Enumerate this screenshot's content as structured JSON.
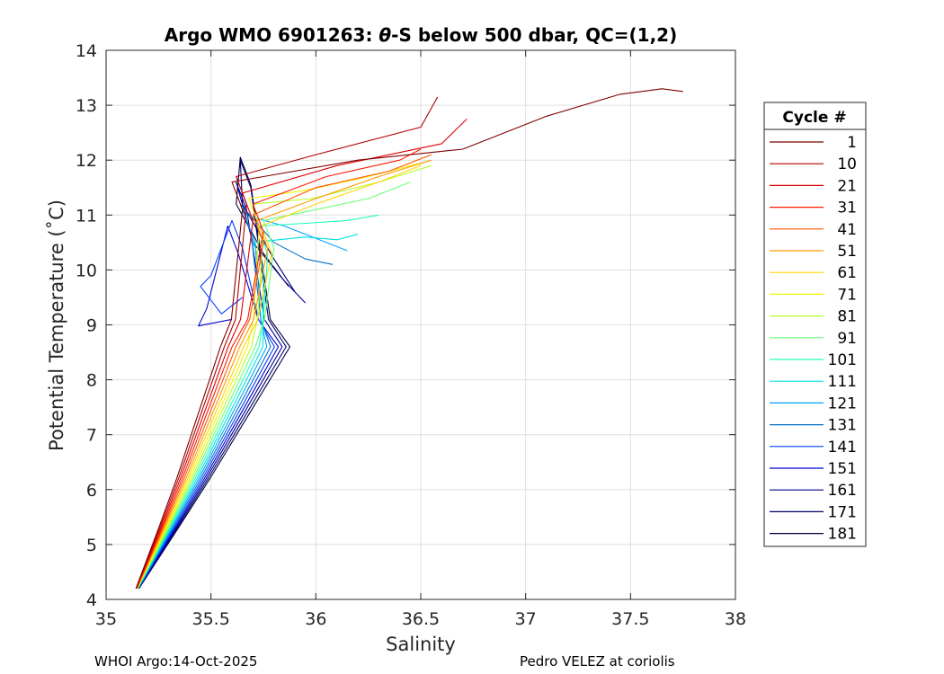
{
  "chart_data": {
    "type": "line",
    "title": "Argo WMO 6901263: θ-S below 500 dbar,  QC=(1,2)",
    "title_prefix": "Argo WMO 6901263: ",
    "title_theta": "θ",
    "title_suffix": "-S below 500 dbar,  QC=(1,2)",
    "xlabel": "Salinity",
    "ylabel": "Potential Temperature (˚C)",
    "xlim": [
      35,
      38
    ],
    "ylim": [
      4,
      14
    ],
    "xticks": [
      "35",
      "35.5",
      "36",
      "36.5",
      "37",
      "37.5",
      "38"
    ],
    "yticks": [
      "4",
      "5",
      "6",
      "7",
      "8",
      "9",
      "10",
      "11",
      "12",
      "13",
      "14"
    ],
    "grid": true,
    "legend": {
      "title": "Cycle #",
      "placement": "right",
      "entries": [
        {
          "label": "1",
          "color": "#800000"
        },
        {
          "label": "10",
          "color": "#b00000"
        },
        {
          "label": "21",
          "color": "#df0000"
        },
        {
          "label": "31",
          "color": "#ff1a00"
        },
        {
          "label": "41",
          "color": "#ff5500"
        },
        {
          "label": "51",
          "color": "#ff9a00"
        },
        {
          "label": "61",
          "color": "#ffd500"
        },
        {
          "label": "71",
          "color": "#f5f500"
        },
        {
          "label": "81",
          "color": "#b6ff26"
        },
        {
          "label": "91",
          "color": "#6aff7a"
        },
        {
          "label": "101",
          "color": "#20ffc0"
        },
        {
          "label": "111",
          "color": "#00e0e0"
        },
        {
          "label": "121",
          "color": "#00a4ff"
        },
        {
          "label": "131",
          "color": "#0070c8"
        },
        {
          "label": "141",
          "color": "#0040ff"
        },
        {
          "label": "151",
          "color": "#0000d0"
        },
        {
          "label": "161",
          "color": "#000090"
        },
        {
          "label": "171",
          "color": "#00006a"
        },
        {
          "label": "181",
          "color": "#000040"
        }
      ]
    },
    "series": [
      {
        "name": "1",
        "color": "#800000",
        "points": [
          [
            35.6,
            11.6
          ],
          [
            35.75,
            11.7
          ],
          [
            36.2,
            12.0
          ],
          [
            36.7,
            12.2
          ],
          [
            37.1,
            12.8
          ],
          [
            37.45,
            13.2
          ],
          [
            37.65,
            13.3
          ],
          [
            37.75,
            13.25
          ]
        ]
      },
      {
        "name": "10",
        "color": "#b00000",
        "points": [
          [
            35.62,
            11.7
          ],
          [
            36.0,
            12.1
          ],
          [
            36.5,
            12.6
          ],
          [
            36.58,
            13.15
          ]
        ]
      },
      {
        "name": "21",
        "color": "#df0000",
        "points": [
          [
            35.65,
            11.4
          ],
          [
            36.1,
            11.9
          ],
          [
            36.6,
            12.3
          ],
          [
            36.72,
            12.75
          ]
        ]
      },
      {
        "name": "31",
        "color": "#ff1a00",
        "points": [
          [
            35.7,
            11.2
          ],
          [
            36.05,
            11.7
          ],
          [
            36.4,
            12.0
          ],
          [
            36.5,
            12.2
          ]
        ]
      },
      {
        "name": "41",
        "color": "#ff5500",
        "points": [
          [
            35.7,
            11.0
          ],
          [
            36.0,
            11.5
          ],
          [
            36.35,
            11.8
          ],
          [
            36.55,
            12.1
          ]
        ]
      },
      {
        "name": "51",
        "color": "#ff9a00",
        "points": [
          [
            35.72,
            10.9
          ],
          [
            36.0,
            11.3
          ],
          [
            36.3,
            11.7
          ],
          [
            36.55,
            12.0
          ]
        ]
      },
      {
        "name": "61",
        "color": "#ffd500",
        "points": [
          [
            35.74,
            10.8
          ],
          [
            36.0,
            11.2
          ],
          [
            36.3,
            11.6
          ],
          [
            36.5,
            11.9
          ]
        ]
      },
      {
        "name": "71",
        "color": "#f5f500",
        "points": [
          [
            35.68,
            11.3
          ],
          [
            35.95,
            11.45
          ],
          [
            36.25,
            11.7
          ],
          [
            36.5,
            11.95
          ]
        ]
      },
      {
        "name": "81",
        "color": "#b6ff26",
        "points": [
          [
            35.7,
            11.2
          ],
          [
            35.98,
            11.3
          ],
          [
            36.3,
            11.6
          ],
          [
            36.55,
            11.9
          ]
        ]
      },
      {
        "name": "91",
        "color": "#6aff7a",
        "points": [
          [
            35.75,
            10.9
          ],
          [
            36.0,
            11.1
          ],
          [
            36.25,
            11.3
          ],
          [
            36.45,
            11.6
          ]
        ]
      },
      {
        "name": "101",
        "color": "#20ffc0",
        "points": [
          [
            35.72,
            10.8
          ],
          [
            35.95,
            10.85
          ],
          [
            36.15,
            10.9
          ],
          [
            36.3,
            11.0
          ]
        ]
      },
      {
        "name": "111",
        "color": "#00e0e0",
        "points": [
          [
            35.7,
            10.5
          ],
          [
            35.95,
            10.6
          ],
          [
            36.1,
            10.55
          ],
          [
            36.2,
            10.65
          ]
        ]
      },
      {
        "name": "121",
        "color": "#00a4ff",
        "points": [
          [
            35.66,
            11.0
          ],
          [
            35.85,
            10.8
          ],
          [
            36.05,
            10.5
          ],
          [
            36.15,
            10.35
          ]
        ]
      },
      {
        "name": "131",
        "color": "#0070c8",
        "points": [
          [
            35.64,
            11.2
          ],
          [
            35.8,
            10.5
          ],
          [
            35.95,
            10.2
          ],
          [
            36.08,
            10.1
          ]
        ]
      },
      {
        "name": "141",
        "color": "#0040ff",
        "points": [
          [
            35.6,
            10.9
          ],
          [
            35.5,
            9.9
          ],
          [
            35.45,
            9.7
          ],
          [
            35.55,
            9.2
          ],
          [
            35.65,
            9.5
          ]
        ]
      },
      {
        "name": "151",
        "color": "#0000d0",
        "points": [
          [
            35.58,
            10.8
          ],
          [
            35.48,
            9.3
          ],
          [
            35.44,
            8.98
          ],
          [
            35.6,
            9.1
          ]
        ]
      },
      {
        "name": "161",
        "color": "#000090",
        "points": [
          [
            35.62,
            11.6
          ],
          [
            35.7,
            10.5
          ],
          [
            35.85,
            9.8
          ],
          [
            35.95,
            9.4
          ]
        ]
      },
      {
        "name": "171",
        "color": "#00006a",
        "points": [
          [
            35.64,
            12.0
          ],
          [
            35.65,
            11.2
          ],
          [
            35.8,
            10.2
          ],
          [
            35.9,
            9.6
          ]
        ]
      },
      {
        "name": "181",
        "color": "#000040",
        "points": [
          [
            35.64,
            12.05
          ],
          [
            35.62,
            11.2
          ],
          [
            35.75,
            10.3
          ],
          [
            35.87,
            9.7
          ]
        ]
      }
    ]
  },
  "footer": {
    "left": "WHOI Argo:14-Oct-2025",
    "right": "Pedro VELEZ at coriolis"
  }
}
